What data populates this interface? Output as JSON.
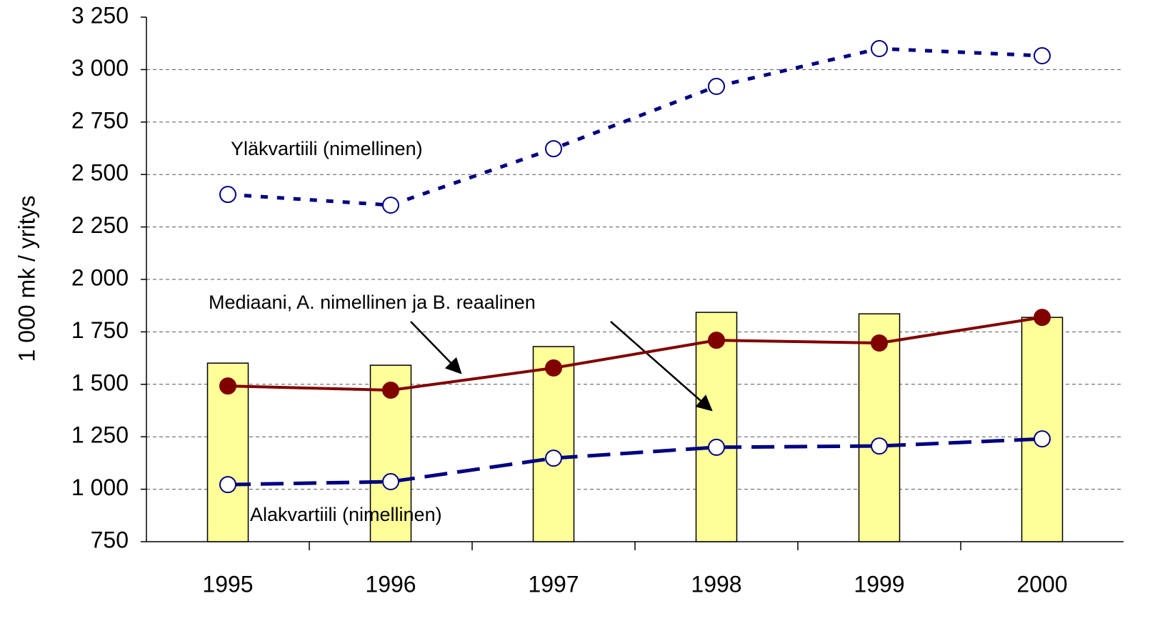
{
  "chart_data": {
    "type": "combo",
    "y_label": "1 000 mk / yritys",
    "categories": [
      "1995",
      "1996",
      "1997",
      "1998",
      "1999",
      "2000"
    ],
    "series": [
      {
        "type": "bar",
        "color": "#ffff99",
        "values": [
          1601,
          1591,
          1680,
          1843,
          1836,
          1819
        ]
      },
      {
        "type": "line",
        "color": "#800000",
        "line_style": "solid",
        "marker": "filled",
        "values": [
          1492,
          1472,
          1578,
          1710,
          1697,
          1819
        ]
      },
      {
        "type": "line",
        "color": "#000080",
        "line_style": "dotted",
        "marker": "hollow",
        "values": [
          2405,
          2354,
          2623,
          2920,
          3100,
          3066
        ]
      },
      {
        "type": "line",
        "color": "#000080",
        "line_style": "dashed",
        "marker": "hollow",
        "values": [
          1022,
          1036,
          1148,
          1200,
          1206,
          1240
        ]
      }
    ],
    "annotations": [
      "Yläkvartiili (nimellinen)",
      "Mediaani, A. nimellinen ja B. reaalinen",
      "Alakvartiili (nimellinen)"
    ],
    "ylim": [
      750,
      3250
    ],
    "yticks": [
      {
        "value": 750,
        "label": "750"
      },
      {
        "value": 1000,
        "label": "1 000"
      },
      {
        "value": 1250,
        "label": "1 250"
      },
      {
        "value": 1500,
        "label": "1 500"
      },
      {
        "value": 1750,
        "label": "1 750"
      },
      {
        "value": 2000,
        "label": "2 000"
      },
      {
        "value": 2250,
        "label": "2 250"
      },
      {
        "value": 2500,
        "label": "2 500"
      },
      {
        "value": 2750,
        "label": "2 750"
      },
      {
        "value": 3000,
        "label": "3 000"
      },
      {
        "value": 3250,
        "label": "3 250"
      }
    ],
    "grid": true
  }
}
